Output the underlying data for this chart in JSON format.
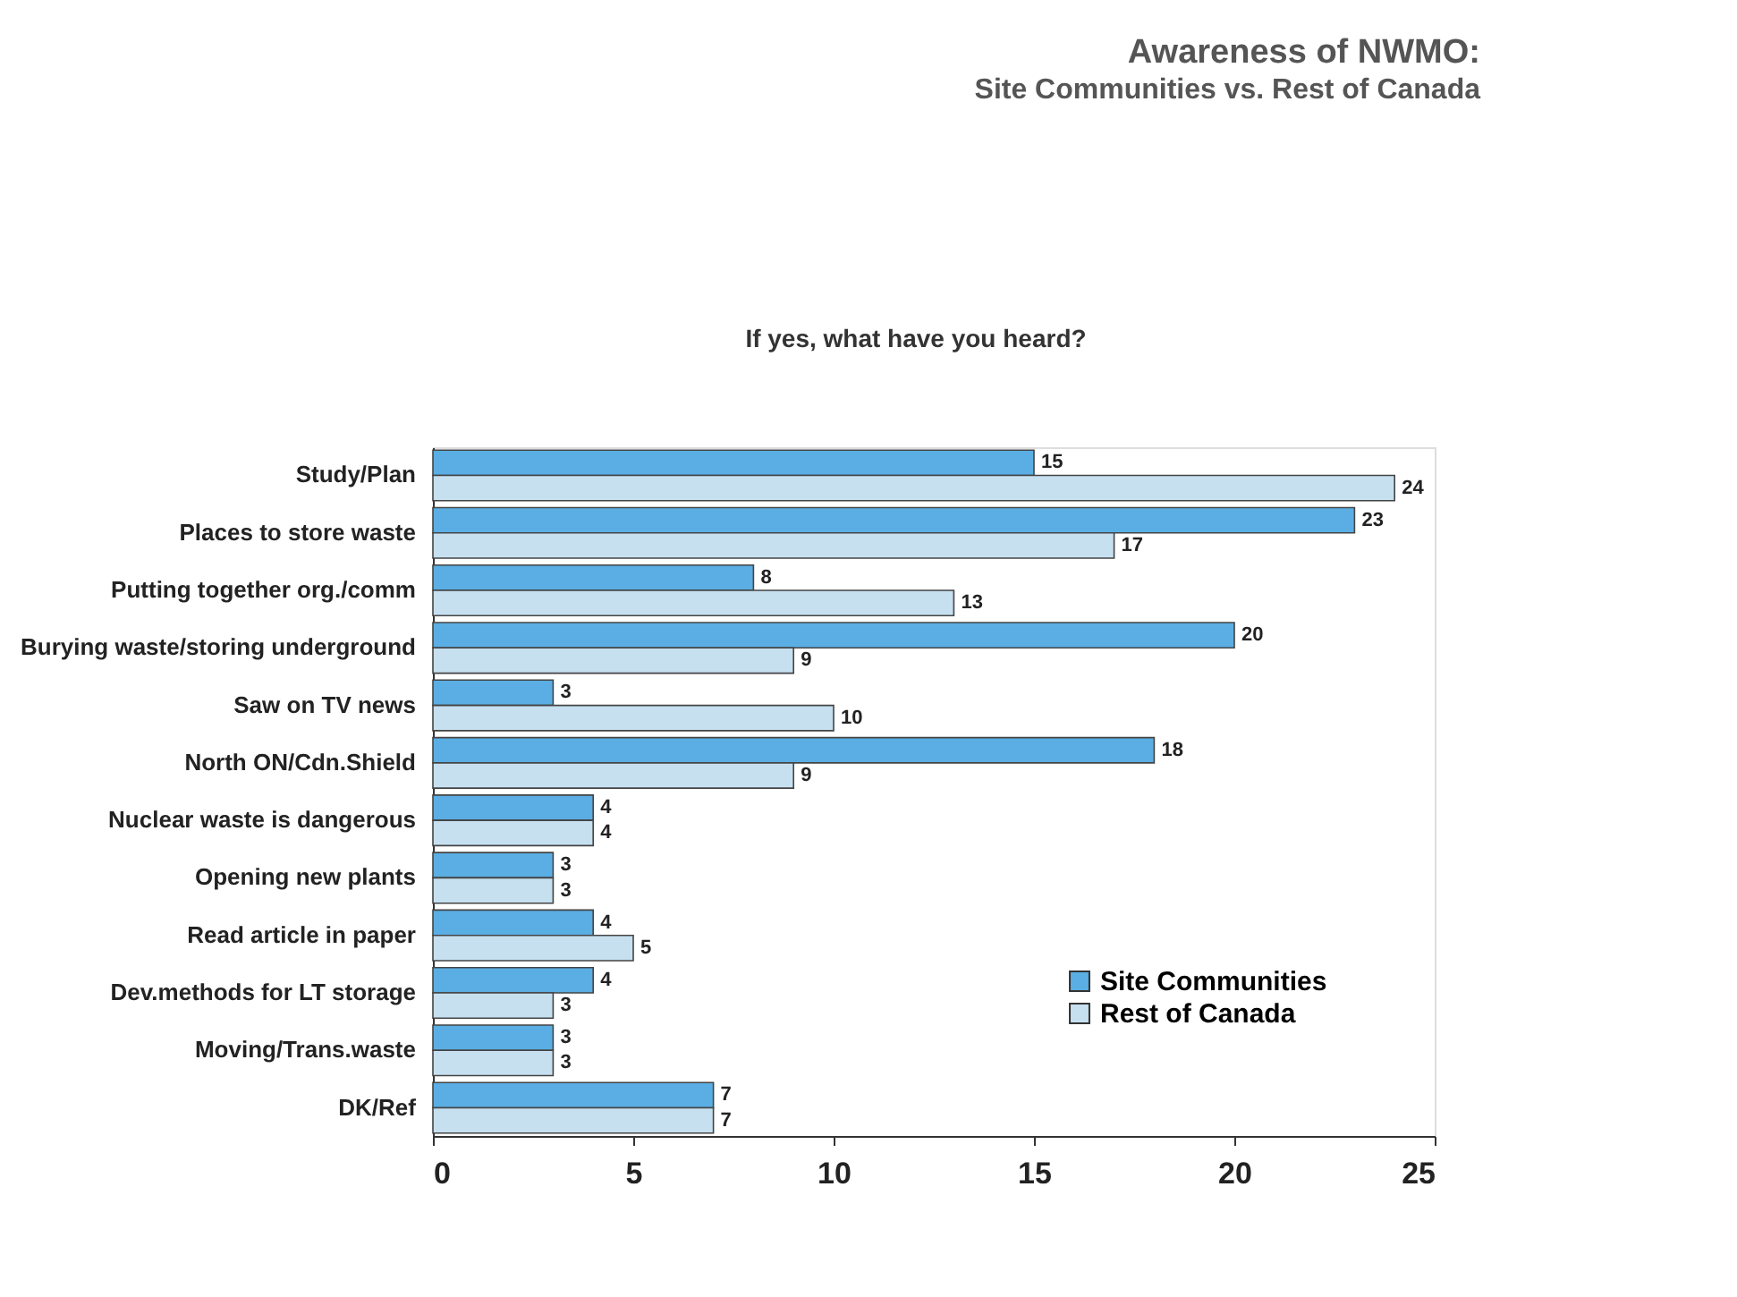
{
  "chart_data": {
    "type": "bar",
    "orientation": "horizontal",
    "title": "Awareness of NWMO:",
    "subtitle": "Site Communities vs. Rest of Canada",
    "annotations": [
      "If yes, what have you heard?"
    ],
    "categories": [
      "Study/Plan",
      "Places to store waste",
      "Putting together org./comm",
      "Burying waste/storing underground",
      "Saw on TV news",
      "North ON/Cdn.Shield",
      "Nuclear waste is dangerous",
      "Opening new plants",
      "Read article in paper",
      "Dev.methods for LT storage",
      "Moving/Trans.waste",
      "DK/Ref"
    ],
    "series": [
      {
        "name": "Site Communities",
        "color": "#5aaee3",
        "values": [
          15,
          23,
          8,
          20,
          3,
          18,
          4,
          3,
          4,
          4,
          3,
          7
        ]
      },
      {
        "name": "Rest of Canada",
        "color": "#c6e0f0",
        "values": [
          24,
          17,
          13,
          9,
          10,
          9,
          4,
          3,
          5,
          3,
          3,
          7
        ]
      }
    ],
    "xlim": [
      0,
      25
    ],
    "xticks": [
      0,
      5,
      10,
      15,
      20,
      25
    ],
    "data_labels": true,
    "grid": false,
    "legend": "bottom right"
  }
}
